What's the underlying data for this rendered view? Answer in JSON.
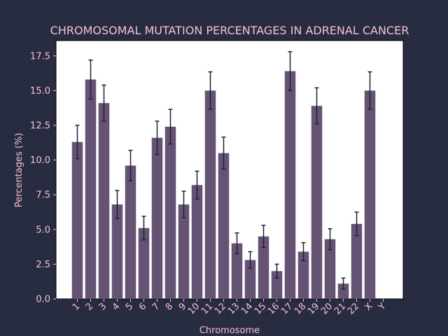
{
  "chart_data": {
    "type": "bar",
    "title": "CHROMOSOMAL MUTATION PERCENTAGES IN ADRENAL CANCER",
    "xlabel": "Chromosome",
    "ylabel": "Percentages (%)",
    "categories": [
      "1",
      "2",
      "3",
      "4",
      "5",
      "6",
      "7",
      "8",
      "9",
      "10",
      "11",
      "12",
      "13",
      "14",
      "15",
      "16",
      "17",
      "18",
      "19",
      "20",
      "21",
      "22",
      "X",
      "Y"
    ],
    "values": [
      11.3,
      15.8,
      14.1,
      6.8,
      9.6,
      5.1,
      11.6,
      12.4,
      6.8,
      8.2,
      15.0,
      10.5,
      4.0,
      2.8,
      4.5,
      2.0,
      16.4,
      3.4,
      13.9,
      4.3,
      1.1,
      5.4,
      15.0,
      0.0
    ],
    "errors": [
      1.2,
      1.4,
      1.3,
      1.0,
      1.1,
      0.85,
      1.2,
      1.25,
      0.95,
      1.0,
      1.35,
      1.15,
      0.75,
      0.6,
      0.8,
      0.5,
      1.4,
      0.65,
      1.3,
      0.75,
      0.4,
      0.85,
      1.35,
      0.0
    ],
    "ylim": [
      0,
      18.6
    ],
    "yticks": [
      0.0,
      2.5,
      5.0,
      7.5,
      10.0,
      12.5,
      15.0,
      17.5
    ],
    "ytick_labels": [
      "0.0",
      "2.5",
      "5.0",
      "7.5",
      "10.0",
      "12.5",
      "15.0",
      "17.5"
    ],
    "grid": false,
    "colors": {
      "background": "#282c41",
      "plot_area": "#ffffff",
      "bar": "#665373",
      "error_bar": "#1c2136",
      "text": "#f4c1cf",
      "axis": "#000000"
    }
  }
}
